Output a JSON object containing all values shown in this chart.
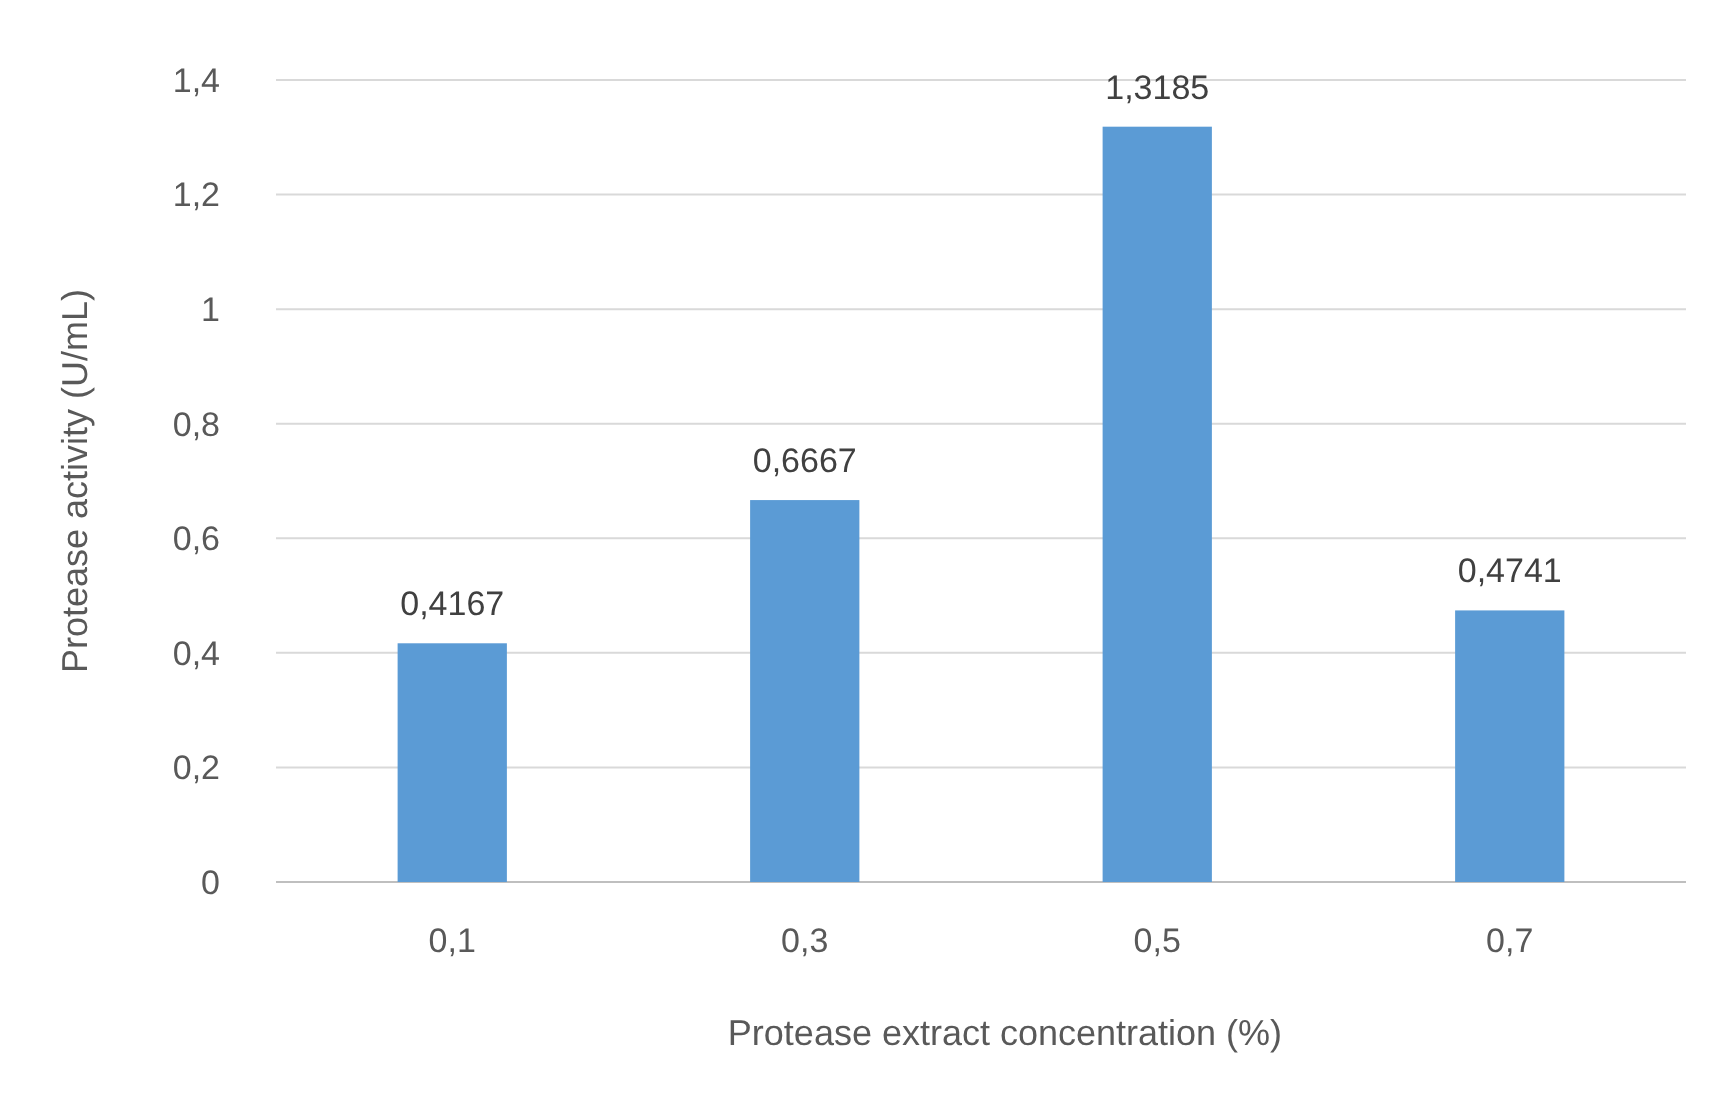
{
  "chart_data": {
    "type": "bar",
    "xlabel": "Protease extract concentration (%)",
    "ylabel": "Protease activity (U/mL)",
    "categories": [
      "0,1",
      "0,3",
      "0,5",
      "0,7"
    ],
    "values": [
      0.4167,
      0.6667,
      1.3185,
      0.4741
    ],
    "value_labels": [
      "0,4167",
      "0,6667",
      "1,3185",
      "0,4741"
    ],
    "color": "#5b9bd5",
    "ylim": [
      0,
      1.4
    ],
    "yticks": [
      0,
      {
        "value": 0.2,
        "label": "0,2"
      },
      {
        "value": 0.4,
        "label": "0,4"
      },
      {
        "value": 0.6,
        "label": "0,6"
      },
      {
        "value": 0.8,
        "label": "0,8"
      },
      1,
      {
        "value": 1.2,
        "label": "1,2"
      },
      {
        "value": 1.4,
        "label": "1,4"
      }
    ],
    "grid": "y"
  }
}
